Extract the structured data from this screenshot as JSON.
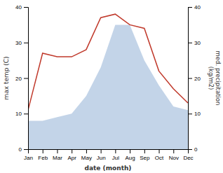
{
  "chart_data": {
    "type": "line",
    "categories": [
      "Jan",
      "Feb",
      "Mar",
      "Apr",
      "May",
      "Jun",
      "Jul",
      "Aug",
      "Sep",
      "Oct",
      "Nov",
      "Dec"
    ],
    "series": [
      {
        "type": "area",
        "color": "#b8cce4",
        "values": [
          8,
          8,
          9,
          10,
          15,
          23,
          35,
          35,
          25,
          18,
          12,
          11
        ]
      },
      {
        "type": "line",
        "color": "#c0392b",
        "values": [
          11,
          27,
          26,
          26,
          28,
          37,
          38,
          35,
          34,
          22,
          17,
          13
        ]
      }
    ],
    "xlabel": "date (month)",
    "ylabel": "max temp (C)",
    "y2label": "med. precipitation\n(kg/m2)",
    "ylim": [
      0,
      40
    ],
    "yticks": [
      0,
      10,
      20,
      30,
      40
    ],
    "y2lim": [
      0,
      40
    ],
    "y2ticks": [
      0,
      10,
      20,
      30,
      40
    ],
    "grid": false
  }
}
